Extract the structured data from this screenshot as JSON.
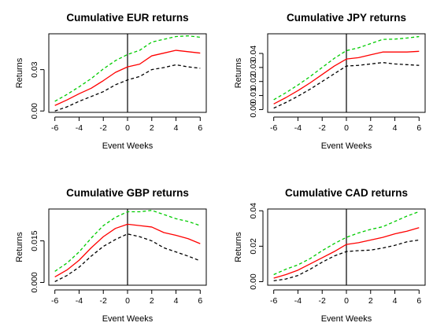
{
  "chart_data": [
    {
      "type": "line",
      "title": "Cumulative EUR returns",
      "xlabel": "Event Weeks",
      "ylabel": "Returns",
      "x": [
        -6,
        -5,
        -4,
        -3,
        -2,
        -1,
        0,
        1,
        2,
        3,
        4,
        5,
        6
      ],
      "xlim": [
        -6.5,
        6.5
      ],
      "xticks": [
        -6,
        -4,
        -2,
        0,
        2,
        4,
        6
      ],
      "ylim": [
        -0.001,
        0.056
      ],
      "yticks": [
        0.0,
        0.03
      ],
      "ytick_labels": [
        "0.00",
        "0.03"
      ],
      "vline": 0,
      "series": [
        {
          "color": "#ff0000",
          "dash": "solid",
          "values": [
            0.004,
            0.008,
            0.0125,
            0.0165,
            0.022,
            0.028,
            0.032,
            0.034,
            0.04,
            0.042,
            0.044,
            0.043,
            0.042
          ]
        },
        {
          "color": "#00cc00",
          "dash": "dashed",
          "values": [
            0.007,
            0.012,
            0.0175,
            0.0235,
            0.0305,
            0.0365,
            0.041,
            0.044,
            0.05,
            0.052,
            0.054,
            0.0545,
            0.0535
          ]
        },
        {
          "color": "#000000",
          "dash": "dashed",
          "values": [
            0.0,
            0.003,
            0.007,
            0.0105,
            0.014,
            0.019,
            0.0225,
            0.025,
            0.03,
            0.0315,
            0.0335,
            0.032,
            0.031
          ]
        }
      ]
    },
    {
      "type": "line",
      "title": "Cumulative JPY returns",
      "xlabel": "Event Weeks",
      "ylabel": "Returns",
      "x": [
        -6,
        -5,
        -4,
        -3,
        -2,
        -1,
        0,
        1,
        2,
        3,
        4,
        5,
        6
      ],
      "xlim": [
        -6.5,
        6.5
      ],
      "xticks": [
        -6,
        -4,
        -2,
        0,
        2,
        4,
        6
      ],
      "ylim": [
        -0.002,
        0.054
      ],
      "yticks": [
        0.0,
        0.01,
        0.02,
        0.03,
        0.04
      ],
      "ytick_labels": [
        "0.00",
        "0.01",
        "0.02",
        "0.03",
        "0.04"
      ],
      "vline": 0,
      "series": [
        {
          "color": "#ff0000",
          "dash": "solid",
          "values": [
            0.004,
            0.0085,
            0.0135,
            0.019,
            0.025,
            0.031,
            0.036,
            0.037,
            0.039,
            0.041,
            0.041,
            0.041,
            0.0415
          ]
        },
        {
          "color": "#00cc00",
          "dash": "dashed",
          "values": [
            0.007,
            0.012,
            0.0175,
            0.0235,
            0.03,
            0.0365,
            0.042,
            0.044,
            0.047,
            0.05,
            0.0502,
            0.051,
            0.052
          ]
        },
        {
          "color": "#000000",
          "dash": "dashed",
          "values": [
            0.001,
            0.005,
            0.0095,
            0.0145,
            0.02,
            0.0255,
            0.031,
            0.0315,
            0.0325,
            0.0335,
            0.0325,
            0.032,
            0.0315
          ]
        }
      ]
    },
    {
      "type": "line",
      "title": "Cumulative GBP returns",
      "xlabel": "Event Weeks",
      "ylabel": "Returns",
      "x": [
        -6,
        -5,
        -4,
        -3,
        -2,
        -1,
        0,
        1,
        2,
        3,
        4,
        5,
        6
      ],
      "xlim": [
        -6.5,
        6.5
      ],
      "xticks": [
        -6,
        -4,
        -2,
        0,
        2,
        4,
        6
      ],
      "ylim": [
        -0.001,
        0.0265
      ],
      "yticks": [
        0.0,
        0.015
      ],
      "ytick_labels": [
        "0.000",
        "0.015"
      ],
      "vline": 0,
      "series": [
        {
          "color": "#ff0000",
          "dash": "solid",
          "values": [
            0.002,
            0.0045,
            0.008,
            0.0125,
            0.0165,
            0.0195,
            0.021,
            0.0205,
            0.02,
            0.018,
            0.017,
            0.0158,
            0.014
          ]
        },
        {
          "color": "#00cc00",
          "dash": "dashed",
          "values": [
            0.004,
            0.007,
            0.011,
            0.016,
            0.0205,
            0.0235,
            0.0255,
            0.0255,
            0.026,
            0.0245,
            0.023,
            0.022,
            0.0205
          ]
        },
        {
          "color": "#000000",
          "dash": "dashed",
          "values": [
            0.0003,
            0.0025,
            0.0055,
            0.0095,
            0.013,
            0.0155,
            0.0175,
            0.0165,
            0.015,
            0.0125,
            0.011,
            0.0095,
            0.0078
          ]
        }
      ]
    },
    {
      "type": "line",
      "title": "Cumulative CAD returns",
      "xlabel": "Event Weeks",
      "ylabel": "Returns",
      "x": [
        -6,
        -5,
        -4,
        -3,
        -2,
        -1,
        0,
        1,
        2,
        3,
        4,
        5,
        6
      ],
      "xlim": [
        -6.5,
        6.5
      ],
      "xticks": [
        -6,
        -4,
        -2,
        0,
        2,
        4,
        6
      ],
      "ylim": [
        -0.002,
        0.041
      ],
      "yticks": [
        0.0,
        0.02,
        0.04
      ],
      "ytick_labels": [
        "0.00",
        "0.02",
        "0.04"
      ],
      "vline": 0,
      "series": [
        {
          "color": "#ff0000",
          "dash": "solid",
          "values": [
            0.002,
            0.004,
            0.0065,
            0.01,
            0.0135,
            0.017,
            0.021,
            0.022,
            0.0235,
            0.025,
            0.027,
            0.0285,
            0.0305
          ]
        },
        {
          "color": "#00cc00",
          "dash": "dashed",
          "values": [
            0.004,
            0.007,
            0.0095,
            0.013,
            0.0175,
            0.0215,
            0.025,
            0.0275,
            0.0295,
            0.031,
            0.034,
            0.037,
            0.0395
          ]
        },
        {
          "color": "#000000",
          "dash": "dashed",
          "values": [
            0.0005,
            0.0015,
            0.0035,
            0.007,
            0.011,
            0.0145,
            0.017,
            0.0175,
            0.0178,
            0.019,
            0.0205,
            0.0225,
            0.0235
          ]
        }
      ]
    }
  ]
}
